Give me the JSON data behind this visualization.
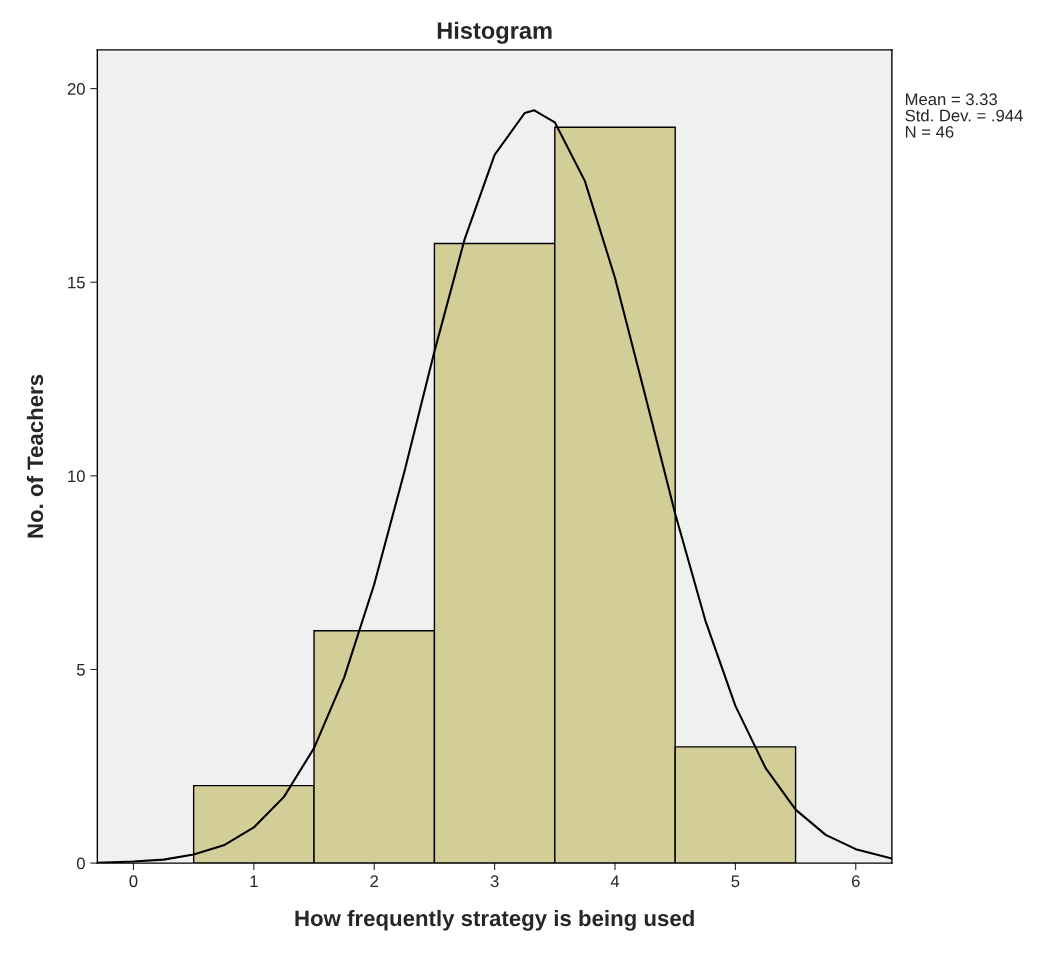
{
  "chart_data": {
    "type": "histogram",
    "title": "Histogram",
    "xlabel": "How frequently strategy is being used",
    "ylabel": "No. of Teachers",
    "bins": [
      0.5,
      1.5,
      2.5,
      3.5,
      4.5,
      5.5
    ],
    "values": [
      2,
      6,
      16,
      19,
      3
    ],
    "color": "#d3ce98",
    "series": [
      {
        "type": "line",
        "color": "#000000",
        "x": [
          -0.3,
          0,
          0.25,
          0.5,
          0.75,
          1,
          1.25,
          1.5,
          1.75,
          2,
          2.25,
          2.5,
          2.75,
          3,
          3.25,
          3.33,
          3.5,
          3.75,
          4,
          4.25,
          4.5,
          4.75,
          5,
          5.25,
          5.5,
          5.75,
          6,
          6.3
        ],
        "values": [
          0.01,
          0.04,
          0.09,
          0.22,
          0.46,
          0.92,
          1.71,
          2.97,
          4.79,
          7.2,
          10.1,
          13.21,
          16.1,
          18.29,
          19.37,
          19.44,
          19.13,
          17.61,
          15.11,
          12.09,
          9.02,
          6.27,
          4.06,
          2.46,
          1.38,
          0.73,
          0.36,
          0.12
        ]
      }
    ],
    "xlim": [
      -0.3,
      6.3
    ],
    "ylim": [
      0,
      21
    ],
    "xticks": [
      0,
      1,
      2,
      3,
      4,
      5,
      6
    ],
    "yticks": [
      0,
      5,
      10,
      15,
      20
    ],
    "grid": false,
    "annotations": [
      "Mean = 3.33",
      "Std. Dev. = .944",
      "N = 46"
    ]
  }
}
